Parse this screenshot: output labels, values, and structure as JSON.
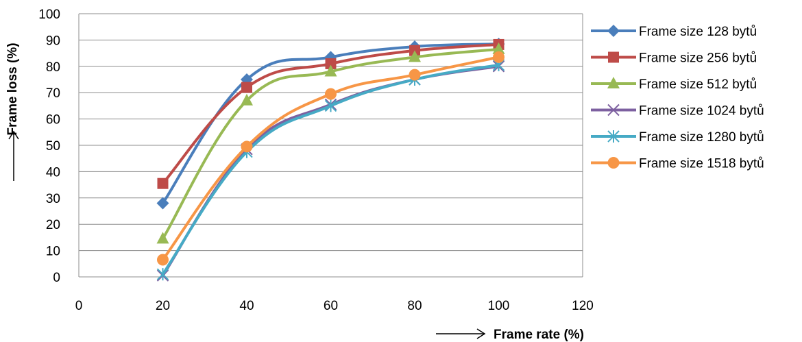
{
  "chart_data": {
    "type": "line",
    "xlabel": "Frame rate (%)",
    "ylabel": "Frame loss (%)",
    "xlim": [
      0,
      120
    ],
    "ylim": [
      0,
      100
    ],
    "xticks": [
      0,
      20,
      40,
      60,
      80,
      100,
      120
    ],
    "yticks": [
      0,
      10,
      20,
      30,
      40,
      50,
      60,
      70,
      80,
      90,
      100
    ],
    "grid": "horizontal",
    "legend": "right",
    "x": [
      20,
      40,
      60,
      80,
      100
    ],
    "series": [
      {
        "name": "Frame size 128 bytů",
        "values": [
          28,
          75,
          83.5,
          87.5,
          88.5
        ],
        "color": "#4A7EBB",
        "marker": "diamond"
      },
      {
        "name": "Frame size 256 bytů",
        "values": [
          35.5,
          72,
          81,
          86,
          88.3
        ],
        "color": "#BE4B48",
        "marker": "square"
      },
      {
        "name": "Frame size 512 bytů",
        "values": [
          14.5,
          67,
          78,
          83.5,
          86.5
        ],
        "color": "#98B954",
        "marker": "triangle"
      },
      {
        "name": "Frame size 1024 bytů",
        "values": [
          0.5,
          48.5,
          65.5,
          75,
          80
        ],
        "color": "#7D60A0",
        "marker": "x"
      },
      {
        "name": "Frame size 1280 bytů",
        "values": [
          1,
          47.5,
          65,
          75,
          80.5
        ],
        "color": "#46AAC5",
        "marker": "star"
      },
      {
        "name": "Frame size 1518 bytů",
        "values": [
          6.5,
          49.5,
          69.5,
          76.8,
          83.5
        ],
        "color": "#F79646",
        "marker": "circle"
      }
    ]
  }
}
